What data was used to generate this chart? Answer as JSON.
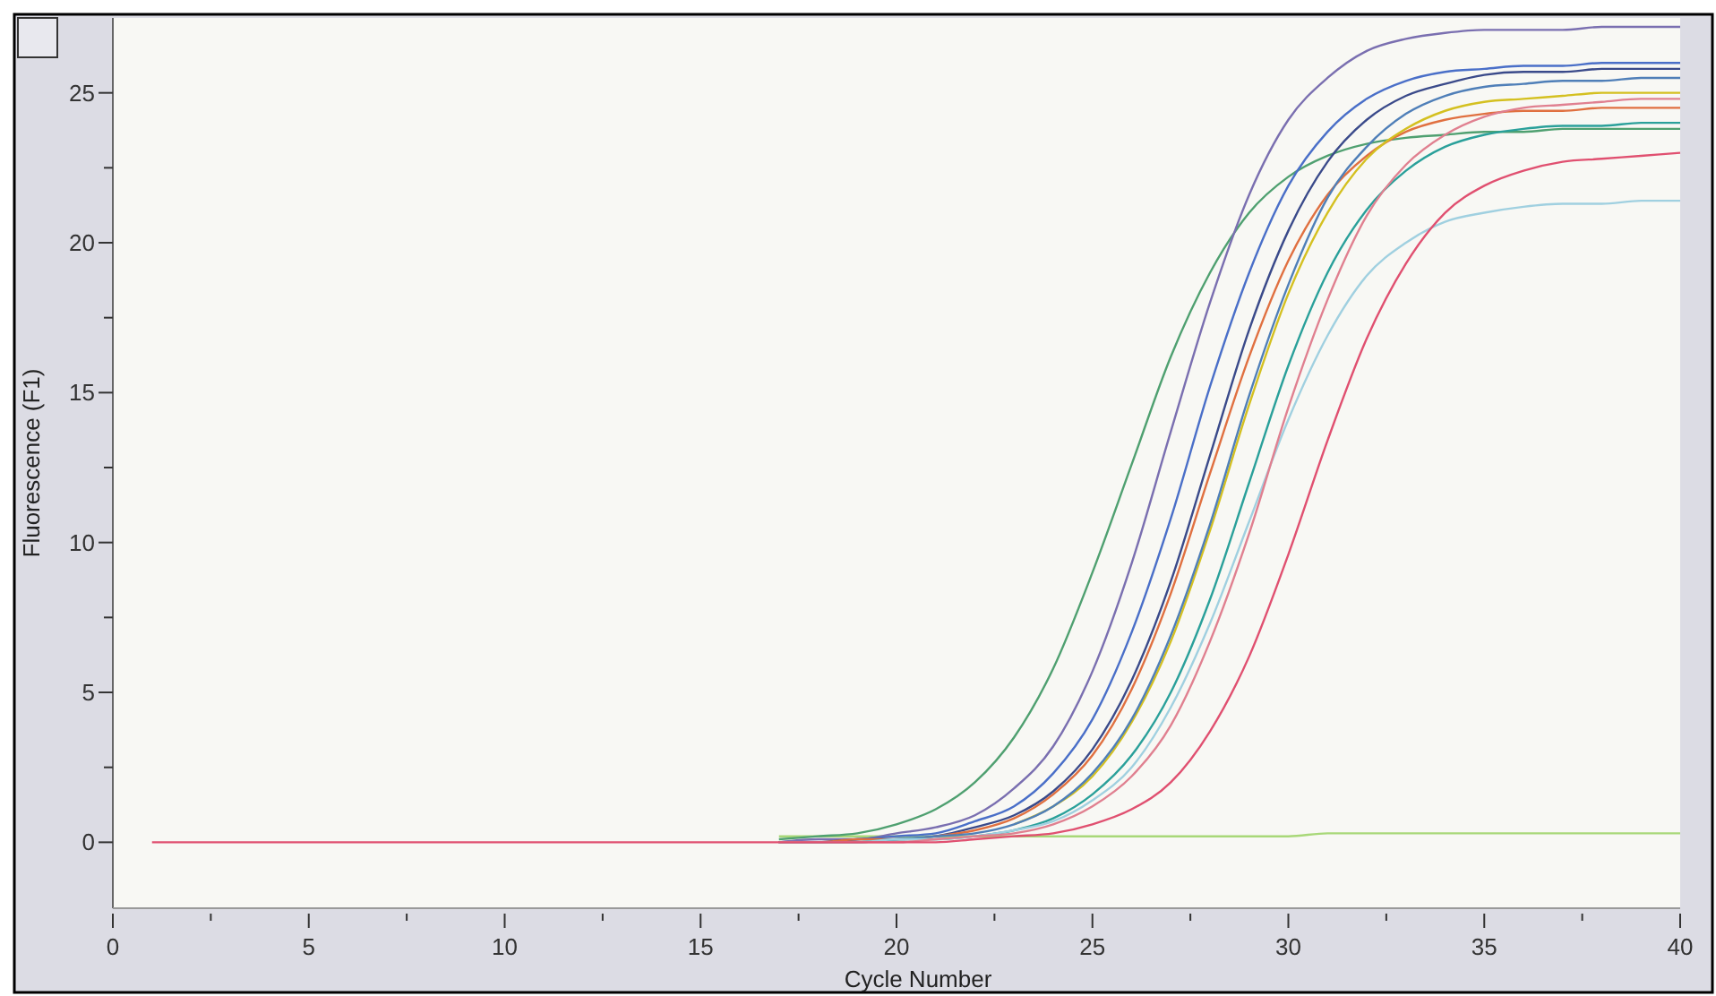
{
  "chart_data": {
    "type": "line",
    "xlabel": "Cycle Number",
    "ylabel": "Fluorescence (F1)",
    "xlim": [
      0,
      40
    ],
    "ylim": [
      -2.2,
      27.5
    ],
    "xticks": [
      0,
      {
        "value": 2.5,
        "label": null
      },
      5,
      {
        "value": 7.5,
        "label": null
      },
      10,
      {
        "value": 12.5,
        "label": null
      },
      15,
      {
        "value": 17.5,
        "label": null
      },
      20,
      {
        "value": 22.5,
        "label": null
      },
      25,
      {
        "value": 27.5,
        "label": null
      },
      30,
      {
        "value": 32.5,
        "label": null
      },
      35,
      {
        "value": 37.5,
        "label": null
      },
      40
    ],
    "yticks": [
      0,
      {
        "value": 2.5,
        "label": null
      },
      5,
      {
        "value": 7.5,
        "label": null
      },
      10,
      {
        "value": 12.5,
        "label": null
      },
      15,
      {
        "value": 17.5,
        "label": null
      },
      20,
      {
        "value": 22.5,
        "label": null
      },
      25
    ],
    "grid": false,
    "x": [
      1,
      5,
      10,
      15,
      17,
      18,
      19,
      20,
      21,
      22,
      23,
      24,
      25,
      26,
      27,
      28,
      29,
      30,
      31,
      32,
      33,
      34,
      35,
      36,
      37,
      38,
      39,
      40
    ],
    "series": [
      {
        "color": "#a8d878",
        "values": [
          null,
          null,
          null,
          null,
          0.2,
          0.2,
          0.2,
          0.2,
          0.2,
          0.2,
          0.2,
          0.2,
          0.2,
          0.2,
          0.2,
          0.2,
          0.2,
          0.2,
          0.3,
          0.3,
          0.3,
          0.3,
          0.3,
          0.3,
          0.3,
          0.3,
          0.3,
          0.3
        ]
      },
      {
        "color": "#4fa070",
        "values": [
          null,
          null,
          null,
          null,
          0.1,
          0.2,
          0.3,
          0.6,
          1.1,
          2.0,
          3.5,
          5.8,
          9.0,
          12.6,
          16.2,
          19.0,
          21.0,
          22.2,
          22.9,
          23.3,
          23.5,
          23.6,
          23.7,
          23.7,
          23.8,
          23.8,
          23.8,
          23.8
        ]
      },
      {
        "color": "#7a6fb0",
        "values": [
          null,
          null,
          null,
          null,
          0,
          0.1,
          0.1,
          0.3,
          0.5,
          0.9,
          1.8,
          3.2,
          5.7,
          9.3,
          13.7,
          18.0,
          21.6,
          24.1,
          25.5,
          26.4,
          26.8,
          27.0,
          27.1,
          27.1,
          27.1,
          27.2,
          27.2,
          27.2
        ]
      },
      {
        "color": "#4a6fc8",
        "values": [
          null,
          null,
          null,
          null,
          0,
          0,
          0.1,
          0.2,
          0.3,
          0.7,
          1.2,
          2.3,
          4.1,
          7.0,
          10.8,
          15.2,
          19.0,
          21.9,
          23.7,
          24.8,
          25.4,
          25.7,
          25.8,
          25.9,
          25.9,
          26.0,
          26.0,
          26.0
        ]
      },
      {
        "color": "#3a4a8a",
        "values": [
          null,
          null,
          null,
          null,
          0,
          0,
          0.1,
          0.1,
          0.2,
          0.5,
          0.9,
          1.7,
          3.1,
          5.4,
          8.7,
          12.9,
          17.1,
          20.4,
          22.7,
          24.1,
          24.9,
          25.3,
          25.6,
          25.7,
          25.7,
          25.8,
          25.8,
          25.8
        ]
      },
      {
        "color": "#e07040",
        "values": [
          null,
          null,
          null,
          null,
          0,
          0,
          0.1,
          0.1,
          0.2,
          0.4,
          0.8,
          1.6,
          2.9,
          5.1,
          8.3,
          12.3,
          16.2,
          19.4,
          21.6,
          22.9,
          23.7,
          24.1,
          24.3,
          24.4,
          24.4,
          24.5,
          24.5,
          24.5
        ]
      },
      {
        "color": "#d4c020",
        "values": [
          null,
          null,
          null,
          null,
          null,
          null,
          null,
          null,
          null,
          null,
          0.6,
          1.2,
          2.2,
          4.0,
          6.7,
          10.4,
          14.6,
          18.3,
          21.0,
          22.8,
          23.8,
          24.4,
          24.7,
          24.8,
          24.9,
          25.0,
          25.0,
          25.0
        ]
      },
      {
        "color": "#4f7fb8",
        "values": [
          null,
          null,
          null,
          null,
          0,
          0,
          0,
          0.1,
          0.2,
          0.3,
          0.6,
          1.2,
          2.3,
          4.1,
          6.9,
          10.6,
          14.9,
          18.6,
          21.5,
          23.2,
          24.3,
          24.9,
          25.2,
          25.3,
          25.4,
          25.4,
          25.5,
          25.5
        ]
      },
      {
        "color": "#2aa09a",
        "values": [
          null,
          null,
          null,
          null,
          0,
          0,
          0,
          0.1,
          0.1,
          0.2,
          0.4,
          0.8,
          1.6,
          2.9,
          5.0,
          8.1,
          12.0,
          15.9,
          19.0,
          21.1,
          22.4,
          23.2,
          23.6,
          23.8,
          23.9,
          23.9,
          24.0,
          24.0
        ]
      },
      {
        "color": "#a0d0e0",
        "values": [
          null,
          null,
          null,
          null,
          0,
          0,
          0,
          0.1,
          0.1,
          0.2,
          0.4,
          0.7,
          1.4,
          2.5,
          4.5,
          7.3,
          10.7,
          14.1,
          16.9,
          18.9,
          20.0,
          20.7,
          21.0,
          21.2,
          21.3,
          21.3,
          21.4,
          21.4
        ]
      },
      {
        "color": "#e08090",
        "values": [
          null,
          null,
          null,
          null,
          0,
          0,
          0,
          0,
          0.1,
          0.2,
          0.3,
          0.6,
          1.2,
          2.2,
          3.9,
          6.7,
          10.3,
          14.5,
          18.1,
          20.9,
          22.6,
          23.6,
          24.2,
          24.5,
          24.6,
          24.7,
          24.8,
          24.8
        ]
      },
      {
        "color": "#e05070",
        "values": [
          0,
          0,
          0,
          0,
          0,
          0,
          0,
          0,
          0,
          0.1,
          0.2,
          0.3,
          0.6,
          1.1,
          2.0,
          3.7,
          6.2,
          9.6,
          13.4,
          16.8,
          19.3,
          21.0,
          21.9,
          22.4,
          22.7,
          22.8,
          22.9,
          23.0
        ]
      }
    ]
  }
}
